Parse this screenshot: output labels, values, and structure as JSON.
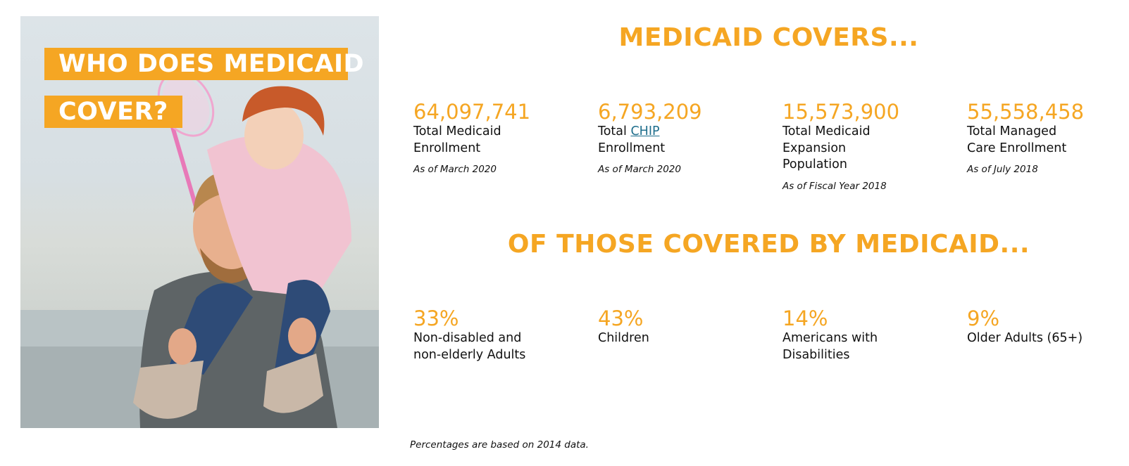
{
  "hero": {
    "title_line1": "WHO DOES MEDICAID",
    "title_line2": "COVER?",
    "accent_color": "#f5a623"
  },
  "covers": {
    "heading": "MEDICAID COVERS...",
    "stats": [
      {
        "value": "64,097,741",
        "label": "Total Medicaid Enrollment",
        "date": "As of March 2020"
      },
      {
        "value": "6,793,209",
        "label_prefix": "Total ",
        "link_text": "CHIP",
        "label_suffix": "Enrollment",
        "date": "As of March 2020"
      },
      {
        "value": "15,573,900",
        "label": "Total Medicaid Expansion Population",
        "date": "As of Fiscal Year 2018"
      },
      {
        "value": "55,558,458",
        "label": "Total Managed Care Enrollment",
        "date": "As of July 2018"
      }
    ]
  },
  "breakdown": {
    "heading": "OF THOSE COVERED BY MEDICAID...",
    "stats": [
      {
        "value": "33%",
        "label": "Non-disabled and non-elderly Adults"
      },
      {
        "value": "43%",
        "label": "Children"
      },
      {
        "value": "14%",
        "label": "Americans with Disabilities"
      },
      {
        "value": "9%",
        "label": "Older Adults (65+)"
      }
    ]
  },
  "footnote": "Percentages are based on 2014 data.",
  "colors": {
    "accent": "#f5a623",
    "link": "#1f6e8c",
    "text": "#111111"
  }
}
